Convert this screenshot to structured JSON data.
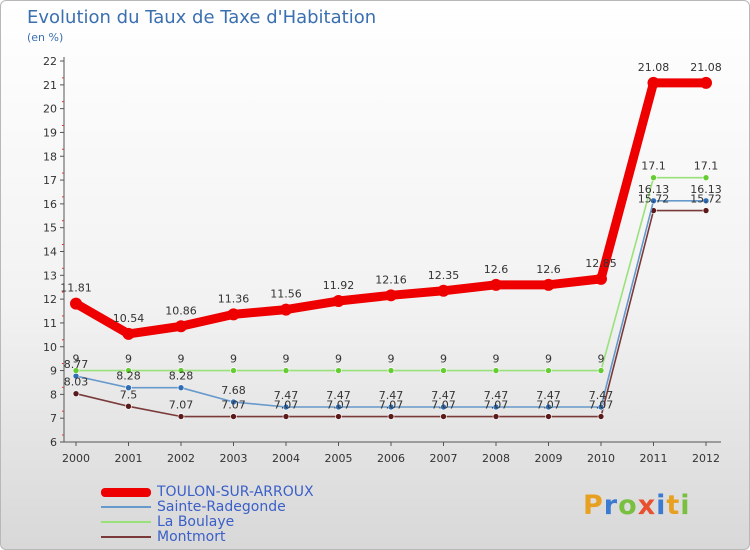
{
  "chart_data": {
    "type": "line",
    "title": "Evolution du Taux de Taxe d'Habitation",
    "unit_label": "(en %)",
    "x": [
      "2000",
      "2001",
      "2002",
      "2003",
      "2004",
      "2005",
      "2006",
      "2007",
      "2008",
      "2009",
      "2010",
      "2011",
      "2012"
    ],
    "ylim": [
      6,
      22
    ],
    "yticks": [
      "6",
      "7",
      "8",
      "9",
      "10",
      "11",
      "12",
      "13",
      "14",
      "15",
      "16",
      "17",
      "18",
      "19",
      "20",
      "21",
      "22"
    ],
    "series": [
      {
        "name": "TOULON-SUR-ARROUX",
        "color": "#ee0000",
        "values": [
          11.81,
          10.54,
          10.86,
          11.36,
          11.56,
          11.92,
          12.16,
          12.35,
          12.6,
          12.6,
          12.85,
          21.08,
          21.08
        ],
        "labels": [
          "11.81",
          "10.54",
          "10.86",
          "11.36",
          "11.56",
          "11.92",
          "12.16",
          "12.35",
          "12.6",
          "12.6",
          "12.85",
          "21.08",
          "21.08"
        ]
      },
      {
        "name": "Sainte-Radegonde",
        "color": "#6699cc",
        "marker": "#2f6db5",
        "values": [
          8.77,
          8.28,
          8.28,
          7.68,
          7.47,
          7.47,
          7.47,
          7.47,
          7.47,
          7.47,
          7.47,
          16.13,
          16.13
        ],
        "labels": [
          "8.77",
          "8.28",
          "8.28",
          "7.68",
          "7.47",
          "7.47",
          "7.47",
          "7.47",
          "7.47",
          "7.47",
          "7.47",
          "16.13",
          "16.13"
        ]
      },
      {
        "name": "La Boulaye",
        "color": "#99e27a",
        "marker": "#66cc33",
        "values": [
          9,
          9,
          9,
          9,
          9,
          9,
          9,
          9,
          9,
          9,
          9,
          17.1,
          17.1
        ],
        "labels": [
          "9",
          "9",
          "9",
          "9",
          "9",
          "9",
          "9",
          "9",
          "9",
          "9",
          "9",
          "17.1",
          "17.1"
        ]
      },
      {
        "name": "Montmort",
        "color": "#7a3a3a",
        "marker": "#5a1a1a",
        "values": [
          8.03,
          7.5,
          7.07,
          7.07,
          7.07,
          7.07,
          7.07,
          7.07,
          7.07,
          7.07,
          7.07,
          15.72,
          15.72
        ],
        "labels": [
          "8.03",
          "7.5",
          "7.07",
          "7.07",
          "7.07",
          "7.07",
          "7.07",
          "7.07",
          "7.07",
          "7.07",
          "7.07",
          "15.72",
          "15.72"
        ]
      }
    ],
    "grid": false,
    "legend": "bottom-left"
  },
  "logo": {
    "text": "Proxiti",
    "colors": [
      "#e8a020",
      "#3a7ad0",
      "#7ac040",
      "#e85030",
      "#3a7ad0",
      "#e8a020",
      "#7ac040"
    ]
  }
}
